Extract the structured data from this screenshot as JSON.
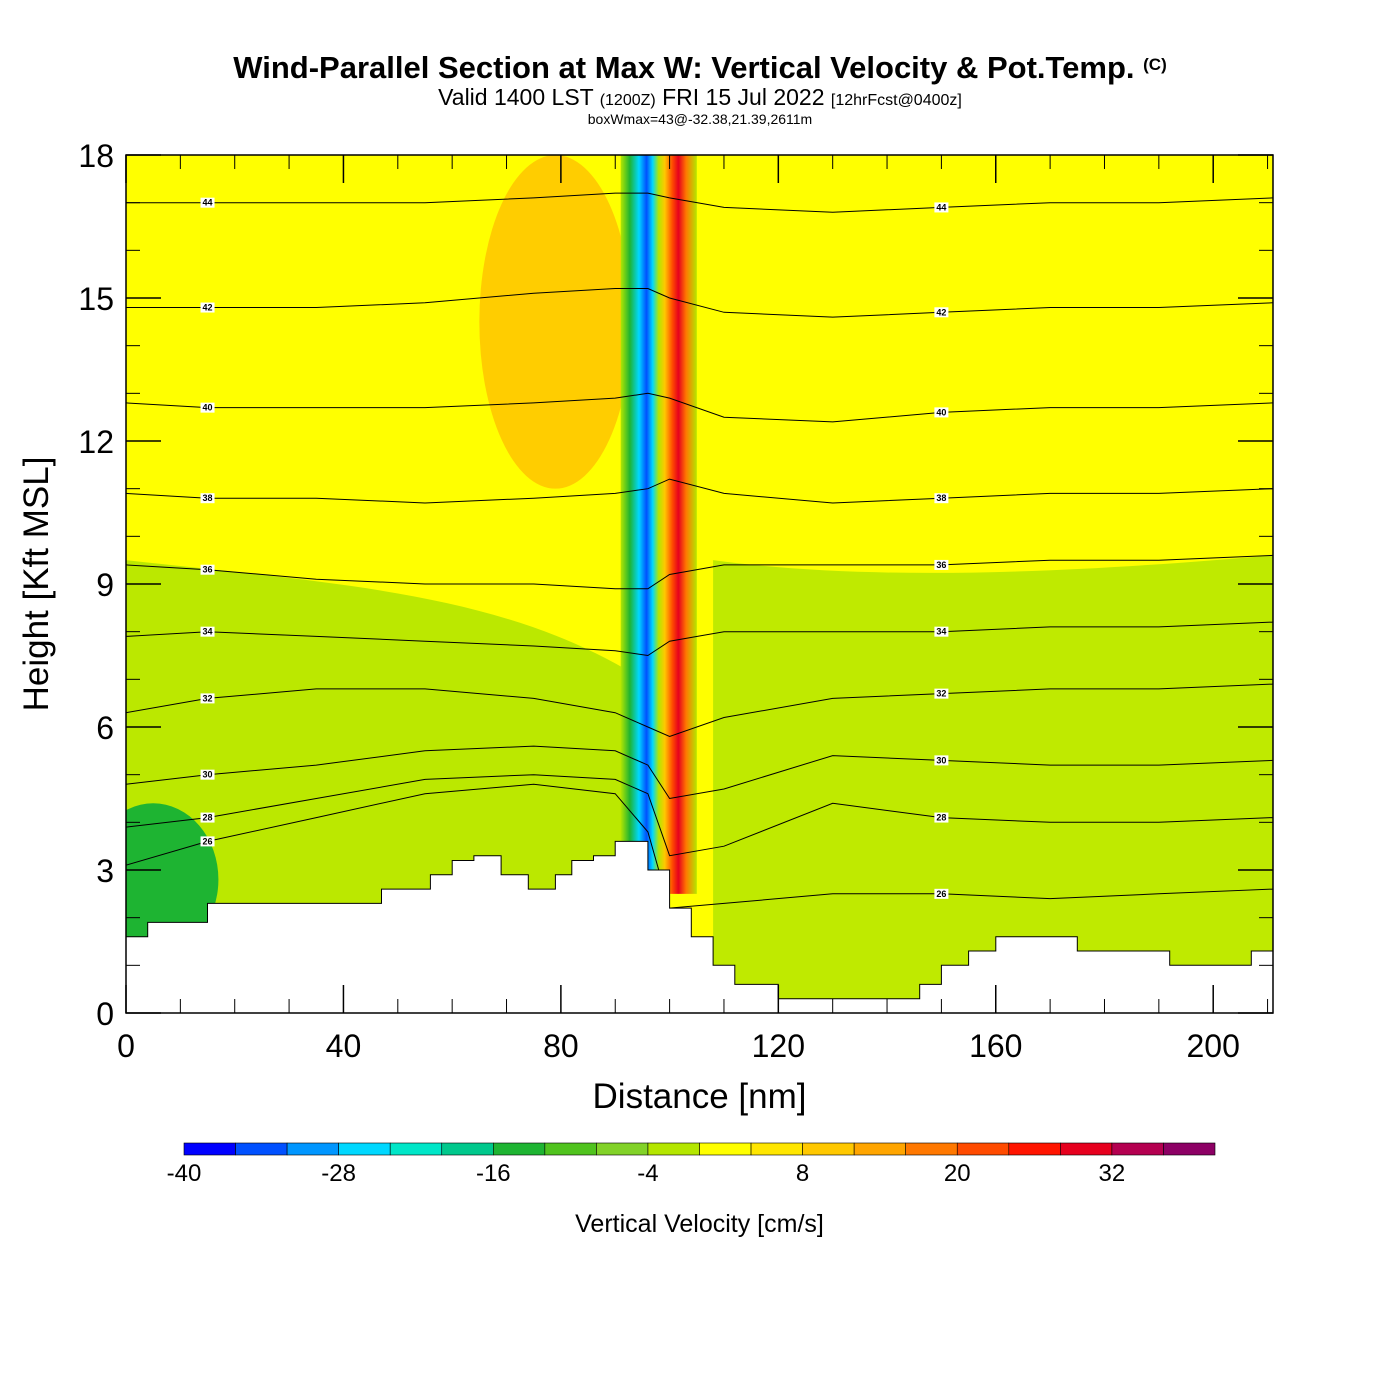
{
  "title": {
    "main": "Wind-Parallel Section at Max W: Vertical Velocity & Pot.Temp.",
    "copyright": "(C)",
    "valid_prefix": "Valid 1400 LST",
    "valid_utc": "(1200Z)",
    "valid_date": "FRI 15 Jul 2022",
    "forecast": "[12hrFcst@0400z]",
    "box_wmax": "boxWmax=43@-32.38,21.39,2611m"
  },
  "chart_data": {
    "type": "heatmap",
    "xlabel": "Distance [nm]",
    "ylabel": "Height [Kft MSL]",
    "xlim": [
      0,
      211
    ],
    "ylim": [
      0,
      18
    ],
    "x_ticks": [
      0,
      40,
      80,
      120,
      160,
      200
    ],
    "y_ticks": [
      0,
      3,
      6,
      9,
      12,
      15,
      18
    ],
    "x_tick_labels": [
      "0",
      "40",
      "80",
      "120",
      "160",
      "200"
    ],
    "y_tick_labels": [
      "0",
      "3",
      "6",
      "9",
      "12",
      "15",
      "18"
    ],
    "terrain": {
      "x": [
        0,
        4,
        4,
        15,
        15,
        47,
        47,
        56,
        56,
        60,
        60,
        64,
        64,
        69,
        69,
        74,
        74,
        79,
        79,
        82,
        82,
        86,
        86,
        90,
        90,
        96,
        96,
        100,
        100,
        104,
        104,
        108,
        108,
        112,
        112,
        114,
        114,
        120,
        120,
        125,
        125,
        146,
        146,
        150,
        150,
        155,
        155,
        160,
        160,
        175,
        175,
        192,
        192,
        207,
        207,
        211
      ],
      "height_kft": [
        1.6,
        1.6,
        1.9,
        1.9,
        2.3,
        2.3,
        2.6,
        2.6,
        2.9,
        2.9,
        3.2,
        3.2,
        3.3,
        3.3,
        2.9,
        2.9,
        2.6,
        2.6,
        2.9,
        2.9,
        3.2,
        3.2,
        3.3,
        3.3,
        3.6,
        3.6,
        3.0,
        3.0,
        2.2,
        2.2,
        1.6,
        1.6,
        1.0,
        1.0,
        0.6,
        0.6,
        0.6,
        0.6,
        0.3,
        0.3,
        0.3,
        0.3,
        0.6,
        0.6,
        1.0,
        1.0,
        1.3,
        1.3,
        1.6,
        1.6,
        1.3,
        1.3,
        1.0,
        1.0,
        1.3,
        1.3
      ]
    },
    "theta_isentropes": [
      {
        "label": "26",
        "x": [
          0,
          15,
          35,
          55,
          75,
          90,
          96,
          100,
          110,
          130,
          150,
          170,
          190,
          211
        ],
        "height_kft": [
          3.1,
          3.6,
          4.1,
          4.6,
          4.8,
          4.6,
          3.8,
          2.2,
          2.3,
          2.5,
          2.5,
          2.4,
          2.5,
          2.6
        ]
      },
      {
        "label": "28",
        "x": [
          0,
          15,
          35,
          55,
          75,
          90,
          96,
          100,
          110,
          130,
          150,
          170,
          190,
          211
        ],
        "height_kft": [
          3.9,
          4.1,
          4.5,
          4.9,
          5.0,
          4.9,
          4.6,
          3.3,
          3.5,
          4.4,
          4.1,
          4.0,
          4.0,
          4.1
        ]
      },
      {
        "label": "30",
        "x": [
          0,
          15,
          35,
          55,
          75,
          90,
          96,
          100,
          110,
          130,
          150,
          170,
          190,
          211
        ],
        "height_kft": [
          4.8,
          5.0,
          5.2,
          5.5,
          5.6,
          5.5,
          5.2,
          4.5,
          4.7,
          5.4,
          5.3,
          5.2,
          5.2,
          5.3
        ]
      },
      {
        "label": "32",
        "x": [
          0,
          15,
          35,
          55,
          75,
          90,
          96,
          100,
          110,
          130,
          150,
          170,
          190,
          211
        ],
        "height_kft": [
          6.3,
          6.6,
          6.8,
          6.8,
          6.6,
          6.3,
          6.0,
          5.8,
          6.2,
          6.6,
          6.7,
          6.8,
          6.8,
          6.9
        ]
      },
      {
        "label": "34",
        "x": [
          0,
          15,
          35,
          55,
          75,
          90,
          96,
          100,
          110,
          130,
          150,
          170,
          190,
          211
        ],
        "height_kft": [
          7.9,
          8.0,
          7.9,
          7.8,
          7.7,
          7.6,
          7.5,
          7.8,
          8.0,
          8.0,
          8.0,
          8.1,
          8.1,
          8.2
        ]
      },
      {
        "label": "36",
        "x": [
          0,
          15,
          35,
          55,
          75,
          90,
          96,
          100,
          110,
          130,
          150,
          170,
          190,
          211
        ],
        "height_kft": [
          9.4,
          9.3,
          9.1,
          9.0,
          9.0,
          8.9,
          8.9,
          9.2,
          9.4,
          9.4,
          9.4,
          9.5,
          9.5,
          9.6
        ]
      },
      {
        "label": "38",
        "x": [
          0,
          15,
          35,
          55,
          75,
          90,
          96,
          100,
          110,
          130,
          150,
          170,
          190,
          211
        ],
        "height_kft": [
          10.9,
          10.8,
          10.8,
          10.7,
          10.8,
          10.9,
          11.0,
          11.2,
          10.9,
          10.7,
          10.8,
          10.9,
          10.9,
          11.0
        ]
      },
      {
        "label": "40",
        "x": [
          0,
          15,
          35,
          55,
          75,
          90,
          96,
          100,
          110,
          130,
          150,
          170,
          190,
          211
        ],
        "height_kft": [
          12.8,
          12.7,
          12.7,
          12.7,
          12.8,
          12.9,
          13.0,
          12.9,
          12.5,
          12.4,
          12.6,
          12.7,
          12.7,
          12.8
        ]
      },
      {
        "label": "42",
        "x": [
          0,
          15,
          35,
          55,
          75,
          90,
          96,
          100,
          110,
          130,
          150,
          170,
          190,
          211
        ],
        "height_kft": [
          14.8,
          14.8,
          14.8,
          14.9,
          15.1,
          15.2,
          15.2,
          15.0,
          14.7,
          14.6,
          14.7,
          14.8,
          14.8,
          14.9
        ]
      },
      {
        "label": "44",
        "x": [
          0,
          15,
          35,
          55,
          75,
          90,
          96,
          100,
          110,
          130,
          150,
          170,
          190,
          211
        ],
        "height_kft": [
          17.0,
          17.0,
          17.0,
          17.0,
          17.1,
          17.2,
          17.2,
          17.1,
          16.9,
          16.8,
          16.9,
          17.0,
          17.0,
          17.1
        ]
      }
    ],
    "vertical_velocity_features": [
      {
        "kind": "updraft",
        "x_at_bottom": 101,
        "x_at_top": 103,
        "height_range_kft": [
          2.5,
          18
        ],
        "max_cm_s": 40
      },
      {
        "kind": "downdraft",
        "x_at_bottom": 97,
        "x_at_top": 99,
        "height_range_kft": [
          3.0,
          18
        ],
        "min_cm_s": -40
      }
    ],
    "colorbar": {
      "title": "Vertical Velocity [cm/s]",
      "tick_labels": [
        "-40",
        "-28",
        "-16",
        "-4",
        "8",
        "20",
        "32"
      ],
      "levels": [
        -40,
        -36,
        -32,
        -28,
        -24,
        -20,
        -16,
        -12,
        -8,
        -4,
        0,
        4,
        8,
        12,
        16,
        20,
        24,
        28,
        32,
        36,
        40
      ],
      "colors": [
        "#0000ff",
        "#0050ff",
        "#0096ff",
        "#00d8ff",
        "#00e6c8",
        "#00c88c",
        "#1eb432",
        "#50c31e",
        "#82d228",
        "#b4e600",
        "#ffff00",
        "#ffe600",
        "#ffc800",
        "#ffa500",
        "#ff7800",
        "#ff4b00",
        "#ff1400",
        "#e6001e",
        "#b40050",
        "#8c0064"
      ]
    }
  }
}
